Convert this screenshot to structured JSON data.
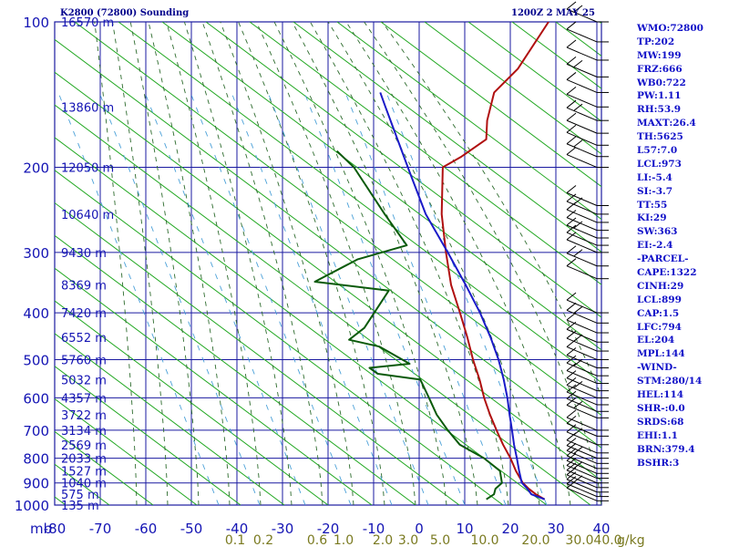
{
  "header": {
    "station": "K2800 (72800) Sounding",
    "time": "1200Z  2 MAY 25"
  },
  "stats": [
    "WMO:72800",
    "TP:202",
    "MW:199",
    "FRZ:666",
    "WB0:722",
    "PW:1.11",
    "RH:53.9",
    "MAXT:26.4",
    "TH:5625",
    "L57:7.0",
    "LCL:973",
    "LI:-5.4",
    "SI:-3.7",
    "TT:55",
    "KI:29",
    "SW:363",
    "EI:-2.4",
    "-PARCEL-",
    "CAPE:1322",
    "CINH:29",
    "LCL:899",
    "CAP:1.5",
    "LFC:794",
    "EL:204",
    "MPL:144",
    "-WIND-",
    "STM:280/14",
    "HEL:114",
    "SHR-:0.0",
    "SRDS:68",
    "EHI:1.1",
    "BRN:379.4",
    "BSHR:3"
  ],
  "colors": {
    "grid": "#1a1aa0",
    "dry_adiabat": "#22a822",
    "moist_adiabat": "#2d6b2d",
    "mixing_ratio": "#4aa0d8",
    "temperature": "#b01010",
    "dewpoint": "#0a5a0a",
    "parcel": "#1a1ac8",
    "label": "#1414b4"
  },
  "chart_data": {
    "type": "skew-t log-p sounding",
    "title": "K2800 (72800) Sounding",
    "time_label": "1200Z  2 MAY 25",
    "x_axis": {
      "unit_label": "mb",
      "ticks": [
        -80,
        -70,
        -60,
        -50,
        -40,
        -30,
        -20,
        -10,
        0,
        10,
        20,
        30,
        40
      ],
      "tick_labels": [
        "-80",
        "-70",
        "-60",
        "-50",
        "-40",
        "-30",
        "-20",
        "-10",
        "0",
        "10",
        "20",
        "30",
        "40"
      ]
    },
    "y_axis": {
      "scale": "log",
      "ticks": [
        100,
        200,
        300,
        400,
        500,
        600,
        700,
        800,
        900,
        1000
      ],
      "tick_labels": [
        "100",
        "200",
        "300",
        "400",
        "500",
        "600",
        "700",
        "800",
        "900",
        "1000"
      ]
    },
    "height_labels": [
      {
        "p": 100,
        "label": "16570 m"
      },
      {
        "p": 150,
        "label": "13860 m"
      },
      {
        "p": 200,
        "label": "12050 m"
      },
      {
        "p": 250,
        "label": "10640 m"
      },
      {
        "p": 300,
        "label": "9430 m"
      },
      {
        "p": 350,
        "label": "8369 m"
      },
      {
        "p": 400,
        "label": "7420 m"
      },
      {
        "p": 450,
        "label": "6552 m"
      },
      {
        "p": 500,
        "label": "5760 m"
      },
      {
        "p": 550,
        "label": "5032 m"
      },
      {
        "p": 600,
        "label": "4357 m"
      },
      {
        "p": 650,
        "label": "3722 m"
      },
      {
        "p": 700,
        "label": "3134 m"
      },
      {
        "p": 750,
        "label": "2569 m"
      },
      {
        "p": 800,
        "label": "2033 m"
      },
      {
        "p": 850,
        "label": "1527 m"
      },
      {
        "p": 900,
        "label": "1040 m"
      },
      {
        "p": 950,
        "label": "575 m"
      },
      {
        "p": 1000,
        "label": "135 m"
      }
    ],
    "mixing_ratio_labels": [
      "0.1",
      "0.2",
      "0.6",
      "1.0",
      "2.0",
      "3.0",
      "5.0",
      "10.0",
      "20.0",
      "30.0",
      "40.0"
    ],
    "mixing_ratio_unit": "g/kg",
    "series": [
      {
        "key": "temperature",
        "points": [
          {
            "p": 973,
            "t": 26.4
          },
          {
            "p": 950,
            "t": 23.5
          },
          {
            "p": 925,
            "t": 20.8
          },
          {
            "p": 900,
            "t": 18.4
          },
          {
            "p": 850,
            "t": 14.5
          },
          {
            "p": 800,
            "t": 10.8
          },
          {
            "p": 750,
            "t": 6.5
          },
          {
            "p": 700,
            "t": 2.2
          },
          {
            "p": 650,
            "t": -2.3
          },
          {
            "p": 600,
            "t": -6.9
          },
          {
            "p": 550,
            "t": -11.5
          },
          {
            "p": 500,
            "t": -16.9
          },
          {
            "p": 450,
            "t": -22.5
          },
          {
            "p": 400,
            "t": -29.0
          },
          {
            "p": 350,
            "t": -36.5
          },
          {
            "p": 300,
            "t": -44.0
          },
          {
            "p": 250,
            "t": -52.5
          },
          {
            "p": 200,
            "t": -61.5
          },
          {
            "p": 190,
            "t": -59.5
          },
          {
            "p": 175,
            "t": -57.5
          },
          {
            "p": 160,
            "t": -61.0
          },
          {
            "p": 140,
            "t": -65.0
          },
          {
            "p": 125,
            "t": -64.5
          },
          {
            "p": 100,
            "t": -67.0
          }
        ]
      },
      {
        "key": "dewpoint",
        "points": [
          {
            "p": 973,
            "t": 13.6
          },
          {
            "p": 950,
            "t": 14.3
          },
          {
            "p": 925,
            "t": 13.5
          },
          {
            "p": 900,
            "t": 13.8
          },
          {
            "p": 850,
            "t": 11.0
          },
          {
            "p": 800,
            "t": 5.0
          },
          {
            "p": 750,
            "t": -3.0
          },
          {
            "p": 700,
            "t": -8.5
          },
          {
            "p": 650,
            "t": -14.0
          },
          {
            "p": 600,
            "t": -19.0
          },
          {
            "p": 550,
            "t": -24.5
          },
          {
            "p": 535,
            "t": -35.0
          },
          {
            "p": 520,
            "t": -38.0
          },
          {
            "p": 510,
            "t": -30.0
          },
          {
            "p": 470,
            "t": -40.0
          },
          {
            "p": 455,
            "t": -48.0
          },
          {
            "p": 430,
            "t": -47.0
          },
          {
            "p": 360,
            "t": -49.0
          },
          {
            "p": 345,
            "t": -67.0
          },
          {
            "p": 310,
            "t": -62.0
          },
          {
            "p": 290,
            "t": -54.0
          },
          {
            "p": 250,
            "t": -65.0
          },
          {
            "p": 200,
            "t": -81.0
          },
          {
            "p": 185,
            "t": -88.0
          }
        ]
      },
      {
        "key": "parcel",
        "points": [
          {
            "p": 973,
            "t": 26.4
          },
          {
            "p": 950,
            "t": 22.5
          },
          {
            "p": 925,
            "t": 20.5
          },
          {
            "p": 899,
            "t": 18.1
          },
          {
            "p": 850,
            "t": 15.2
          },
          {
            "p": 800,
            "t": 12.2
          },
          {
            "p": 750,
            "t": 8.9
          },
          {
            "p": 700,
            "t": 5.6
          },
          {
            "p": 650,
            "t": 2.0
          },
          {
            "p": 600,
            "t": -1.8
          },
          {
            "p": 550,
            "t": -6.2
          },
          {
            "p": 500,
            "t": -11.3
          },
          {
            "p": 450,
            "t": -17.4
          },
          {
            "p": 400,
            "t": -24.6
          },
          {
            "p": 350,
            "t": -33.3
          },
          {
            "p": 300,
            "t": -43.6
          },
          {
            "p": 250,
            "t": -56.0
          },
          {
            "p": 204,
            "t": -68.0
          },
          {
            "p": 150,
            "t": -86.0
          },
          {
            "p": 140,
            "t": -90.0
          }
        ]
      }
    ],
    "wind_barbs_pressures": [
      100,
      110,
      120,
      130,
      140,
      150,
      160,
      170,
      180,
      190,
      200,
      240,
      250,
      260,
      270,
      280,
      290,
      300,
      320,
      340,
      400,
      420,
      440,
      460,
      480,
      500,
      520,
      540,
      560,
      580,
      600,
      620,
      640,
      660,
      700,
      720,
      750,
      780,
      800,
      820,
      840,
      860,
      880,
      900,
      920,
      940,
      960,
      980
    ]
  }
}
